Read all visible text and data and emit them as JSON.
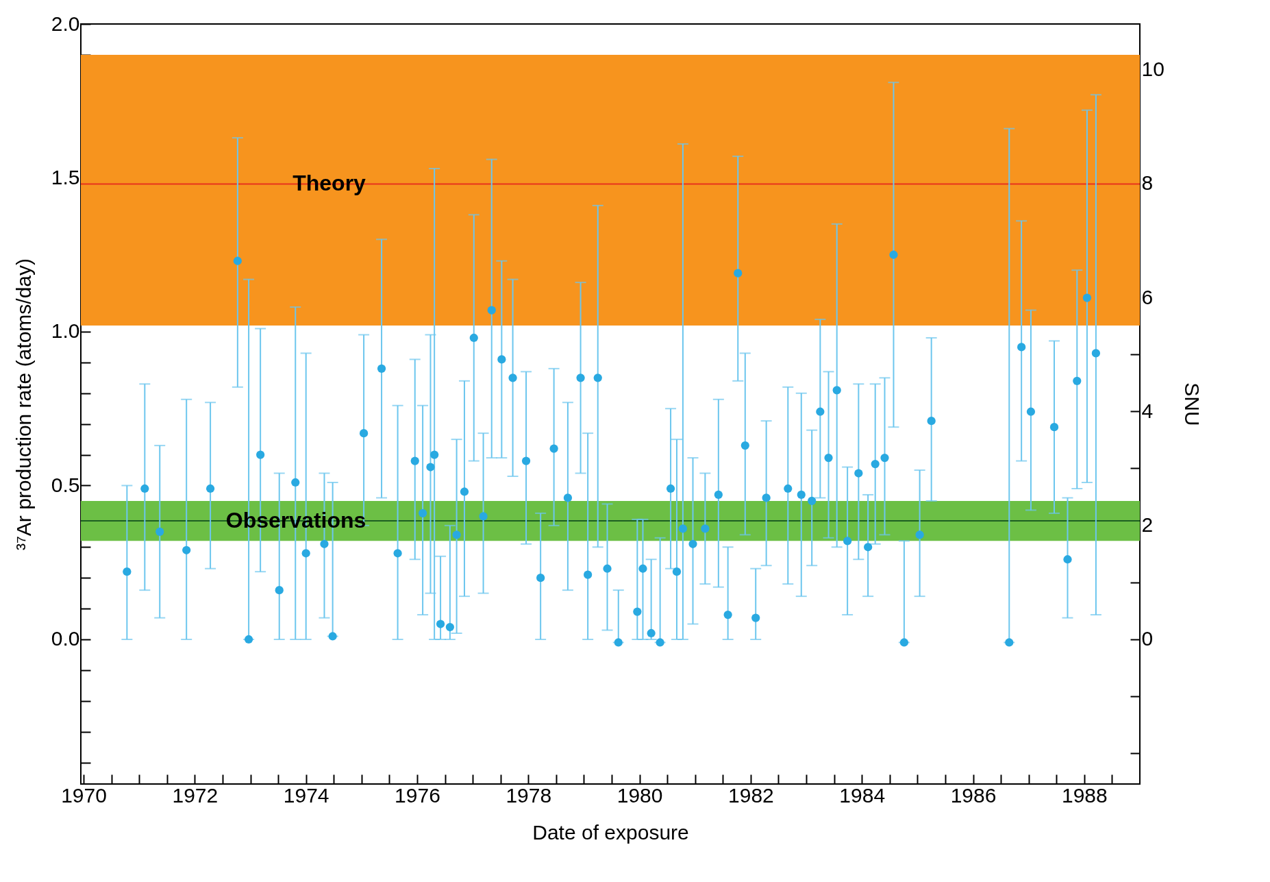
{
  "chart_data": {
    "type": "scatter",
    "xlabel": "Date of exposure",
    "ylabel": "³⁷Ar production rate (atoms/day)",
    "y2label": "SNU",
    "xlim": [
      1969.95,
      1989
    ],
    "xticks": [
      {
        "value": 1970,
        "label": "1970"
      },
      {
        "value": 1970.5,
        "label": null
      },
      {
        "value": 1971,
        "label": null
      },
      {
        "value": 1971.5,
        "label": null
      },
      {
        "value": 1972,
        "label": "1972"
      },
      {
        "value": 1972.5,
        "label": null
      },
      {
        "value": 1973,
        "label": null
      },
      {
        "value": 1973.5,
        "label": null
      },
      {
        "value": 1974,
        "label": "1974"
      },
      {
        "value": 1974.5,
        "label": null
      },
      {
        "value": 1975,
        "label": null
      },
      {
        "value": 1975.5,
        "label": null
      },
      {
        "value": 1976,
        "label": "1976"
      },
      {
        "value": 1976.5,
        "label": null
      },
      {
        "value": 1977,
        "label": null
      },
      {
        "value": 1977.5,
        "label": null
      },
      {
        "value": 1978,
        "label": "1978"
      },
      {
        "value": 1978.5,
        "label": null
      },
      {
        "value": 1979,
        "label": null
      },
      {
        "value": 1979.5,
        "label": null
      },
      {
        "value": 1980,
        "label": "1980"
      },
      {
        "value": 1980.5,
        "label": null
      },
      {
        "value": 1981,
        "label": null
      },
      {
        "value": 1981.5,
        "label": null
      },
      {
        "value": 1982,
        "label": "1982"
      },
      {
        "value": 1982.5,
        "label": null
      },
      {
        "value": 1983,
        "label": null
      },
      {
        "value": 1983.5,
        "label": null
      },
      {
        "value": 1984,
        "label": "1984"
      },
      {
        "value": 1984.5,
        "label": null
      },
      {
        "value": 1985,
        "label": null
      },
      {
        "value": 1985.5,
        "label": null
      },
      {
        "value": 1986,
        "label": "1986"
      },
      {
        "value": 1986.5,
        "label": null
      },
      {
        "value": 1987,
        "label": null
      },
      {
        "value": 1987.5,
        "label": null
      },
      {
        "value": 1988,
        "label": "1988"
      },
      {
        "value": 1988.5,
        "label": null
      }
    ],
    "ylim": [
      -0.47,
      2.0
    ],
    "yticks": [
      {
        "value": -0.4,
        "label": null
      },
      {
        "value": -0.3,
        "label": null
      },
      {
        "value": -0.2,
        "label": null
      },
      {
        "value": -0.1,
        "label": null
      },
      {
        "value": 0,
        "label": "0.0"
      },
      {
        "value": 0.1,
        "label": null
      },
      {
        "value": 0.2,
        "label": null
      },
      {
        "value": 0.3,
        "label": null
      },
      {
        "value": 0.4,
        "label": null
      },
      {
        "value": 0.5,
        "label": "0.5"
      },
      {
        "value": 0.6,
        "label": null
      },
      {
        "value": 0.7,
        "label": null
      },
      {
        "value": 0.8,
        "label": null
      },
      {
        "value": 0.9,
        "label": null
      },
      {
        "value": 1,
        "label": "1.0"
      },
      {
        "value": 1.1,
        "label": null
      },
      {
        "value": 1.2,
        "label": null
      },
      {
        "value": 1.3,
        "label": null
      },
      {
        "value": 1.4,
        "label": null
      },
      {
        "value": 1.5,
        "label": "1.5"
      },
      {
        "value": 1.6,
        "label": null
      },
      {
        "value": 1.7,
        "label": null
      },
      {
        "value": 1.8,
        "label": null
      },
      {
        "value": 1.9,
        "label": null
      },
      {
        "value": 2,
        "label": "2.0"
      }
    ],
    "y2lim": [
      -2.54,
      10.8
    ],
    "y2ticks": [
      {
        "value": -2,
        "label": null
      },
      {
        "value": -1,
        "label": null
      },
      0,
      {
        "value": 1,
        "label": null
      },
      2,
      {
        "value": 3,
        "label": null
      },
      4,
      {
        "value": 5,
        "label": null
      },
      6,
      {
        "value": 7,
        "label": null
      },
      8,
      {
        "value": 9,
        "label": null
      },
      10
    ],
    "bands": [
      {
        "axis": "y",
        "from": 1.02,
        "to": 1.9,
        "color": "#f7941e"
      },
      {
        "axis": "y",
        "from": 0.32,
        "to": 0.45,
        "color": "#6cbf45"
      }
    ],
    "ref_lines": [
      {
        "axis": "y",
        "value": 1.48,
        "label": "Theory",
        "color": "#e8321c"
      },
      {
        "axis": "y",
        "value": 0.385,
        "label": "Observations",
        "color": "#1d5e22"
      }
    ],
    "marker": "circle",
    "grid": false,
    "series": [
      {
        "color": "#29a9e1",
        "x": [
          1970.78,
          1971.1,
          1971.37,
          1971.85,
          1972.28,
          1972.77,
          1972.97,
          1973.18,
          1973.52,
          1973.81,
          1974.0,
          1974.33,
          1974.48,
          1975.04,
          1975.36,
          1975.65,
          1975.96,
          1976.1,
          1976.24,
          1976.31,
          1976.42,
          1976.59,
          1976.71,
          1976.85,
          1977.02,
          1977.19,
          1977.34,
          1977.52,
          1977.72,
          1977.96,
          1978.22,
          1978.46,
          1978.71,
          1978.94,
          1979.07,
          1979.25,
          1979.42,
          1979.62,
          1979.96,
          1980.06,
          1980.21,
          1980.37,
          1980.56,
          1980.67,
          1980.78,
          1980.96,
          1981.18,
          1981.42,
          1981.59,
          1981.77,
          1981.9,
          1982.09,
          1982.28,
          1982.67,
          1982.91,
          1983.1,
          1983.25,
          1983.4,
          1983.55,
          1983.74,
          1983.94,
          1984.11,
          1984.24,
          1984.41,
          1984.57,
          1984.76,
          1985.04,
          1985.25,
          1986.65,
          1986.87,
          1987.04,
          1987.46,
          1987.7,
          1987.87,
          1988.05,
          1988.21
        ],
        "values": [
          0.22,
          0.49,
          0.35,
          0.29,
          0.49,
          1.23,
          0.0,
          0.6,
          0.16,
          0.51,
          0.28,
          0.31,
          0.01,
          0.67,
          0.88,
          0.28,
          0.58,
          0.41,
          0.56,
          0.6,
          0.05,
          0.04,
          0.34,
          0.48,
          0.98,
          0.4,
          1.07,
          0.91,
          0.85,
          0.58,
          0.2,
          0.62,
          0.46,
          0.85,
          0.21,
          0.85,
          0.23,
          -0.01,
          0.09,
          0.23,
          0.02,
          -0.01,
          0.49,
          0.22,
          0.36,
          0.31,
          0.36,
          0.47,
          0.08,
          1.19,
          0.63,
          0.07,
          0.46,
          0.49,
          0.47,
          0.45,
          0.74,
          0.59,
          0.81,
          0.32,
          0.54,
          0.3,
          0.57,
          0.59,
          1.25,
          -0.01,
          0.34,
          0.71,
          -0.01,
          0.95,
          0.74,
          0.69,
          0.26,
          0.84,
          1.11,
          0.93
        ],
        "errors": [
          [
            0.0,
            0.5
          ],
          [
            0.16,
            0.83
          ],
          [
            0.07,
            0.63
          ],
          [
            0.0,
            0.78
          ],
          [
            0.23,
            0.77
          ],
          [
            0.82,
            1.63
          ],
          [
            0.0,
            1.17
          ],
          [
            0.22,
            1.01
          ],
          [
            0.0,
            0.54
          ],
          [
            0.0,
            1.08
          ],
          [
            0.0,
            0.93
          ],
          [
            0.07,
            0.54
          ],
          [
            0.01,
            0.51
          ],
          [
            0.37,
            0.99
          ],
          [
            0.46,
            1.3
          ],
          [
            0.0,
            0.76
          ],
          [
            0.26,
            0.91
          ],
          [
            0.08,
            0.76
          ],
          [
            0.15,
            0.99
          ],
          [
            0.0,
            1.53
          ],
          [
            0.0,
            0.27
          ],
          [
            0.0,
            0.37
          ],
          [
            0.02,
            0.65
          ],
          [
            0.14,
            0.84
          ],
          [
            0.58,
            1.38
          ],
          [
            0.15,
            0.67
          ],
          [
            0.59,
            1.56
          ],
          [
            0.59,
            1.23
          ],
          [
            0.53,
            1.17
          ],
          [
            0.31,
            0.87
          ],
          [
            0.0,
            0.41
          ],
          [
            0.37,
            0.88
          ],
          [
            0.16,
            0.77
          ],
          [
            0.54,
            1.16
          ],
          [
            0.0,
            0.67
          ],
          [
            0.3,
            1.41
          ],
          [
            0.03,
            0.44
          ],
          [
            -0.01,
            0.16
          ],
          [
            0.0,
            0.39
          ],
          [
            0.0,
            0.39
          ],
          [
            0.0,
            0.26
          ],
          [
            -0.01,
            0.33
          ],
          [
            0.23,
            0.75
          ],
          [
            0.0,
            0.65
          ],
          [
            0.0,
            1.61
          ],
          [
            0.05,
            0.59
          ],
          [
            0.18,
            0.54
          ],
          [
            0.17,
            0.78
          ],
          [
            0.0,
            0.3
          ],
          [
            0.84,
            1.57
          ],
          [
            0.34,
            0.93
          ],
          [
            0.0,
            0.23
          ],
          [
            0.24,
            0.71
          ],
          [
            0.18,
            0.82
          ],
          [
            0.14,
            0.8
          ],
          [
            0.24,
            0.68
          ],
          [
            0.46,
            1.04
          ],
          [
            0.33,
            0.87
          ],
          [
            0.3,
            1.35
          ],
          [
            0.08,
            0.56
          ],
          [
            0.26,
            0.83
          ],
          [
            0.14,
            0.47
          ],
          [
            0.31,
            0.83
          ],
          [
            0.34,
            0.85
          ],
          [
            0.69,
            1.81
          ],
          [
            -0.01,
            0.32
          ],
          [
            0.14,
            0.55
          ],
          [
            0.45,
            0.98
          ],
          [
            -0.01,
            1.66
          ],
          [
            0.58,
            1.36
          ],
          [
            0.42,
            1.07
          ],
          [
            0.41,
            0.97
          ],
          [
            0.07,
            0.46
          ],
          [
            0.49,
            1.2
          ],
          [
            0.51,
            1.72
          ],
          [
            0.08,
            1.77
          ]
        ]
      }
    ]
  }
}
